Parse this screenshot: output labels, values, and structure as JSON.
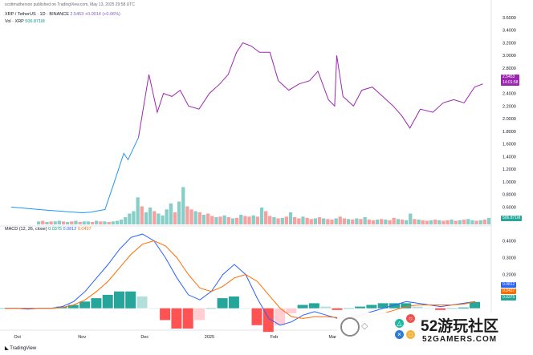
{
  "header": {
    "attribution": "scottmatherson published on TradingView.com, May 13, 2025 29:58 UTC"
  },
  "legend": {
    "symbol": "XRP / TetherUS · 1D · BINANCE",
    "ohlc_text": "2.5453",
    "change_text": "+0.0014 (+0.06%)",
    "vol_label": "Vol · XRP",
    "vol_value": "506.871M",
    "macd_label": "MACD (12, 26, close)",
    "macd_vals": [
      "0.0375",
      "0.0812",
      "0.0437"
    ]
  },
  "badges": {
    "price": "2.5453",
    "price_sub": "14:01:58",
    "vol": "506.871M",
    "macd": [
      "0.0812",
      "0.0437",
      "0.0375"
    ]
  },
  "footer": {
    "logo_text": "TradingView"
  },
  "watermark": {
    "site": "52游玩社区",
    "domain": "52GAMERS.COM"
  },
  "colors": {
    "price_line_before": "#2196f3",
    "price_line_after": "#9c27b0",
    "vol_up": "#26a69a",
    "vol_down": "#ef5350",
    "macd_line": "#2962ff",
    "signal_line": "#ff6d00",
    "hist_pos_strong": "#26a69a",
    "hist_pos_weak": "#b2dfdb",
    "hist_neg_strong": "#ff5252",
    "hist_neg_weak": "#ffcdd2"
  },
  "chart_data": [
    {
      "type": "line",
      "series_label": "XRP / TetherUS · 1D · BINANCE",
      "yaxis_ticks": [
        "3.6000",
        "3.4000",
        "3.2000",
        "3.0000",
        "2.8000",
        "2.6000",
        "2.4000",
        "2.2000",
        "2.0000",
        "1.8000",
        "1.6000",
        "1.4000",
        "1.2000",
        "1.0000",
        "0.8000",
        "0.6000",
        "0.4000"
      ],
      "ylim": [
        0.3,
        3.65
      ],
      "xaxis_ticks": [
        "Oct",
        "Nov",
        "Dec",
        "2025",
        "Feb",
        "Mar",
        "Apr"
      ],
      "x": [
        "2024-09-28",
        "2024-10-15",
        "2024-11-01",
        "2024-11-05",
        "2024-11-12",
        "2024-11-16",
        "2024-11-21",
        "2024-11-23",
        "2024-11-28",
        "2024-12-03",
        "2024-12-07",
        "2024-12-10",
        "2024-12-14",
        "2024-12-18",
        "2024-12-22",
        "2024-12-27",
        "2025-01-01",
        "2025-01-06",
        "2025-01-10",
        "2025-01-14",
        "2025-01-17",
        "2025-01-21",
        "2025-01-25",
        "2025-01-30",
        "2025-02-03",
        "2025-02-08",
        "2025-02-13",
        "2025-02-18",
        "2025-02-22",
        "2025-02-27",
        "2025-03-02",
        "2025-03-03",
        "2025-03-06",
        "2025-03-11",
        "2025-03-15",
        "2025-03-20",
        "2025-03-25",
        "2025-03-30",
        "2025-04-03",
        "2025-04-07",
        "2025-04-12",
        "2025-04-18",
        "2025-04-23",
        "2025-04-28",
        "2025-05-03",
        "2025-05-08",
        "2025-05-12"
      ],
      "y": [
        0.6,
        0.55,
        0.51,
        0.52,
        0.56,
        0.95,
        1.45,
        1.35,
        1.7,
        2.7,
        2.1,
        2.4,
        2.35,
        2.45,
        2.2,
        2.15,
        2.4,
        2.55,
        2.7,
        3.05,
        3.2,
        3.15,
        3.05,
        3.05,
        2.6,
        2.45,
        2.55,
        2.6,
        2.75,
        2.3,
        2.2,
        3.0,
        2.35,
        2.2,
        2.45,
        2.5,
        2.35,
        2.2,
        2.05,
        1.85,
        2.15,
        2.1,
        2.25,
        2.3,
        2.25,
        2.5,
        2.55
      ]
    },
    {
      "type": "bar",
      "series_label": "Vol · XRP",
      "ylim": [
        0,
        1
      ],
      "values": [
        0.05,
        0.06,
        0.04,
        0.05,
        0.05,
        0.06,
        0.05,
        0.04,
        0.05,
        0.06,
        0.04,
        0.05,
        0.05,
        0.04,
        0.06,
        0.05,
        0.05,
        0.04,
        0.05,
        0.06,
        0.08,
        0.12,
        0.18,
        0.22,
        0.45,
        0.3,
        0.2,
        0.28,
        0.22,
        0.18,
        0.15,
        0.25,
        0.35,
        0.2,
        0.38,
        0.62,
        0.3,
        0.25,
        0.22,
        0.2,
        0.16,
        0.18,
        0.14,
        0.12,
        0.13,
        0.15,
        0.12,
        0.1,
        0.11,
        0.16,
        0.14,
        0.13,
        0.15,
        0.13,
        0.28,
        0.22,
        0.14,
        0.12,
        0.1,
        0.11,
        0.13,
        0.2,
        0.12,
        0.1,
        0.13,
        0.11,
        0.09,
        0.1,
        0.12,
        0.1,
        0.09,
        0.08,
        0.1,
        0.13,
        0.1,
        0.09,
        0.08,
        0.1,
        0.09,
        0.12,
        0.08,
        0.07,
        0.08,
        0.09,
        0.08,
        0.07,
        0.11,
        0.09,
        0.08,
        0.07,
        0.18,
        0.09,
        0.08,
        0.07,
        0.06,
        0.07,
        0.08,
        0.07,
        0.06,
        0.07,
        0.08,
        0.06,
        0.07,
        0.08,
        0.09,
        0.07,
        0.06,
        0.07,
        0.08,
        0.11
      ],
      "up": [
        1,
        0,
        1,
        0,
        1,
        1,
        0,
        1,
        0,
        1,
        0,
        1,
        1,
        0,
        1,
        0,
        1,
        0,
        1,
        1,
        1,
        1,
        1,
        1,
        1,
        0,
        1,
        1,
        0,
        1,
        1,
        1,
        1,
        0,
        1,
        1,
        0,
        0,
        1,
        0,
        1,
        0,
        0,
        1,
        0,
        1,
        0,
        1,
        0,
        1,
        0,
        0,
        1,
        0,
        1,
        0,
        0,
        1,
        0,
        1,
        0,
        1,
        0,
        0,
        1,
        0,
        0,
        1,
        0,
        1,
        0,
        0,
        1,
        0,
        0,
        1,
        0,
        1,
        0,
        1,
        0,
        0,
        1,
        0,
        1,
        0,
        0,
        1,
        0,
        1,
        1,
        0,
        1,
        0,
        0,
        1,
        0,
        1,
        0,
        0,
        1,
        0,
        1,
        0,
        1,
        1,
        0,
        1,
        0,
        1
      ]
    },
    {
      "type": "line",
      "series_label": "MACD (12, 26, close)",
      "yaxis_ticks": [
        "0.4000",
        "0.3000",
        "0.2000",
        "0.1000"
      ],
      "ylim": [
        -0.12,
        0.45
      ],
      "series": [
        {
          "values": [
            0.0,
            0.0,
            -0.005,
            0.0,
            0.0,
            0.01,
            0.04,
            0.1,
            0.18,
            0.26,
            0.35,
            0.42,
            0.44,
            0.4,
            0.3,
            0.18,
            0.08,
            0.05,
            0.1,
            0.2,
            0.26,
            0.2,
            0.06,
            -0.06,
            -0.1,
            -0.08,
            -0.04,
            -0.02,
            -0.04,
            -0.06,
            -0.05,
            -0.04,
            -0.02,
            0.0,
            0.02,
            0.04,
            0.03,
            0.02,
            0.01,
            0.02,
            0.03,
            0.04
          ]
        },
        {
          "values": [
            0.0,
            0.0,
            0.0,
            0.0,
            0.0,
            0.005,
            0.02,
            0.05,
            0.1,
            0.16,
            0.24,
            0.32,
            0.38,
            0.4,
            0.37,
            0.3,
            0.2,
            0.12,
            0.1,
            0.13,
            0.18,
            0.2,
            0.16,
            0.08,
            0.0,
            -0.05,
            -0.06,
            -0.05,
            -0.05,
            -0.055,
            -0.055,
            -0.05,
            -0.04,
            -0.03,
            -0.01,
            0.01,
            0.02,
            0.02,
            0.02,
            0.02,
            0.025,
            0.04
          ]
        }
      ],
      "histogram": [
        0.0,
        0.0,
        -0.005,
        0.0,
        0.0,
        0.01,
        0.02,
        0.04,
        0.06,
        0.08,
        0.1,
        0.1,
        0.07,
        0.0,
        -0.07,
        -0.12,
        -0.12,
        -0.07,
        0.0,
        0.06,
        0.07,
        0.0,
        -0.1,
        -0.14,
        -0.1,
        -0.03,
        0.02,
        0.03,
        0.01,
        -0.01,
        0.0,
        0.01,
        0.02,
        0.03,
        0.03,
        0.03,
        0.01,
        0.0,
        -0.01,
        0.0,
        0.005,
        0.0375
      ]
    }
  ]
}
